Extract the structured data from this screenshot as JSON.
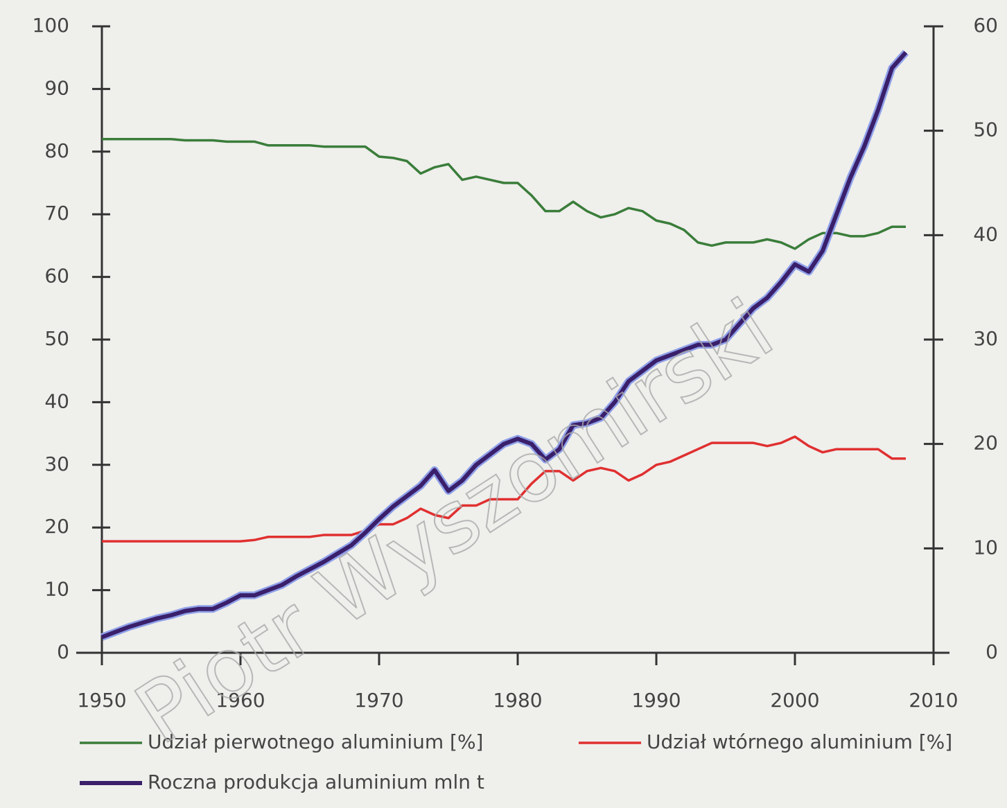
{
  "chart_data": {
    "type": "line",
    "x": [
      1950,
      1951,
      1952,
      1953,
      1954,
      1955,
      1956,
      1957,
      1958,
      1959,
      1960,
      1961,
      1962,
      1963,
      1964,
      1965,
      1966,
      1967,
      1968,
      1969,
      1970,
      1971,
      1972,
      1973,
      1974,
      1975,
      1976,
      1977,
      1978,
      1979,
      1980,
      1981,
      1982,
      1983,
      1984,
      1985,
      1986,
      1987,
      1988,
      1989,
      1990,
      1991,
      1992,
      1993,
      1994,
      1995,
      1996,
      1997,
      1998,
      1999,
      2000,
      2001,
      2002,
      2003,
      2004,
      2005,
      2006,
      2007,
      2008
    ],
    "series": [
      {
        "name": "Udział pierwotnego aluminium [%]",
        "color": "#3a7d3a",
        "values": [
          82,
          82,
          82,
          82,
          82,
          82,
          81.8,
          81.8,
          81.8,
          81.6,
          81.6,
          81.6,
          81,
          81,
          81,
          81,
          80.8,
          80.8,
          80.8,
          80.8,
          79.2,
          79,
          78.5,
          76.5,
          77.5,
          78,
          75.5,
          76,
          75.5,
          75,
          75,
          73,
          70.5,
          70.5,
          72,
          70.5,
          69.5,
          70,
          71,
          70.5,
          69,
          68.5,
          67.5,
          65.5,
          65,
          65.5,
          65.5,
          65.5,
          66,
          65.5,
          64.5,
          66,
          67,
          67,
          66.5,
          66.5,
          67,
          68,
          68
        ]
      },
      {
        "name": "Udział wtórnego aluminium [%]",
        "color": "#e03030",
        "values": [
          17.8,
          17.8,
          17.8,
          17.8,
          17.8,
          17.8,
          17.8,
          17.8,
          17.8,
          17.8,
          17.8,
          18,
          18.5,
          18.5,
          18.5,
          18.5,
          18.8,
          18.8,
          18.8,
          19.5,
          20.5,
          20.5,
          21.5,
          23,
          22,
          21.5,
          23.5,
          23.5,
          24.5,
          24.5,
          24.5,
          27,
          29,
          29,
          27.5,
          29,
          29.5,
          29,
          27.5,
          28.5,
          30,
          30.5,
          31.5,
          32.5,
          33.5,
          33.5,
          33.5,
          33.5,
          33,
          33.5,
          34.5,
          33,
          32,
          32.5,
          32.5,
          32.5,
          32.5,
          31,
          31
        ]
      },
      {
        "name": "Roczna produkcja aluminium mln t",
        "color": "#3a1f6b",
        "axis": "y2",
        "values": [
          1.5,
          2,
          2.5,
          2.9,
          3.3,
          3.6,
          4,
          4.2,
          4.2,
          4.8,
          5.5,
          5.5,
          6,
          6.5,
          7.3,
          8,
          8.7,
          9.5,
          10.3,
          11.5,
          12.8,
          14,
          15,
          16,
          17.5,
          15.5,
          16.5,
          18,
          19,
          20,
          20.5,
          20,
          18.5,
          19.5,
          21.8,
          22,
          22.5,
          24,
          26,
          27,
          28,
          28.5,
          29,
          29.5,
          29.5,
          30,
          31.5,
          33,
          34,
          35.5,
          37.2,
          36.5,
          38.5,
          42,
          45.5,
          48.5,
          52,
          56,
          57.5
        ]
      }
    ],
    "xlim": [
      1950,
      2010
    ],
    "xticks": [
      1950,
      1960,
      1970,
      1980,
      1990,
      2000,
      2010
    ],
    "ylim": [
      0,
      100
    ],
    "yticks": [
      0,
      10,
      20,
      30,
      40,
      50,
      60,
      70,
      80,
      90,
      100
    ],
    "y2lim": [
      0,
      60
    ],
    "y2ticks": [
      0,
      10,
      20,
      30,
      40,
      50,
      60
    ],
    "watermark": "Piotr Wyszomirski"
  }
}
